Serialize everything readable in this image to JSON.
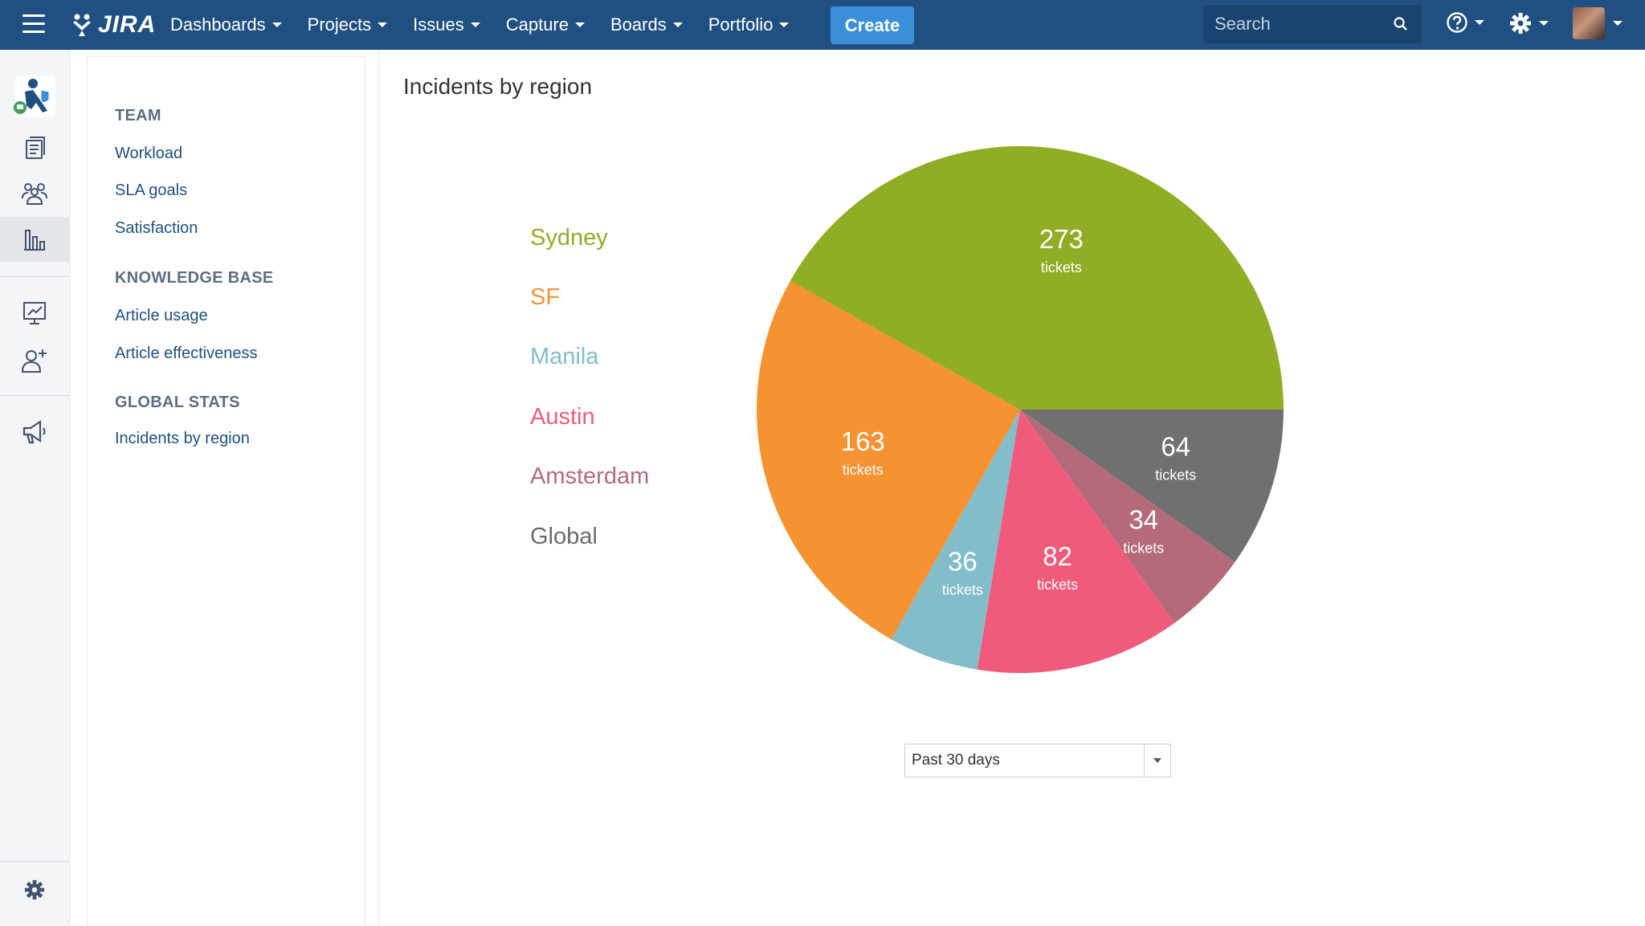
{
  "header": {
    "logo_text": "JIRA",
    "nav": [
      {
        "label": "Dashboards"
      },
      {
        "label": "Projects"
      },
      {
        "label": "Issues"
      },
      {
        "label": "Capture"
      },
      {
        "label": "Boards"
      },
      {
        "label": "Portfolio"
      }
    ],
    "create_label": "Create",
    "search_placeholder": "Search"
  },
  "sidebar": {
    "sections": [
      {
        "heading": "TEAM",
        "links": [
          "Workload",
          "SLA goals",
          "Satisfaction"
        ]
      },
      {
        "heading": "KNOWLEDGE BASE",
        "links": [
          "Article usage",
          "Article effectiveness"
        ]
      },
      {
        "heading": "GLOBAL STATS",
        "links": [
          "Incidents by region"
        ]
      }
    ]
  },
  "main": {
    "title": "Incidents by region",
    "period": "Past 30 days"
  },
  "chart_data": {
    "type": "pie",
    "title": "",
    "unit_label": "tickets",
    "slices": [
      {
        "name": "Sydney",
        "value": 273,
        "color": "#8fad25"
      },
      {
        "name": "Global",
        "value": 64,
        "color": "#707070"
      },
      {
        "name": "Amsterdam",
        "value": 34,
        "color": "#b46a79"
      },
      {
        "name": "Austin",
        "value": 82,
        "color": "#f05b7b"
      },
      {
        "name": "Manila",
        "value": 36,
        "color": "#83bdc9"
      },
      {
        "name": "SF",
        "value": 163,
        "color": "#f59332"
      }
    ],
    "legend": [
      {
        "name": "Sydney",
        "color": "#8fad25"
      },
      {
        "name": "SF",
        "color": "#f59332"
      },
      {
        "name": "Manila",
        "color": "#83bdc9"
      },
      {
        "name": "Austin",
        "color": "#f05b7b"
      },
      {
        "name": "Amsterdam",
        "color": "#b46a79"
      },
      {
        "name": "Global",
        "color": "#6b6b6b"
      }
    ],
    "legend_position": "left"
  }
}
